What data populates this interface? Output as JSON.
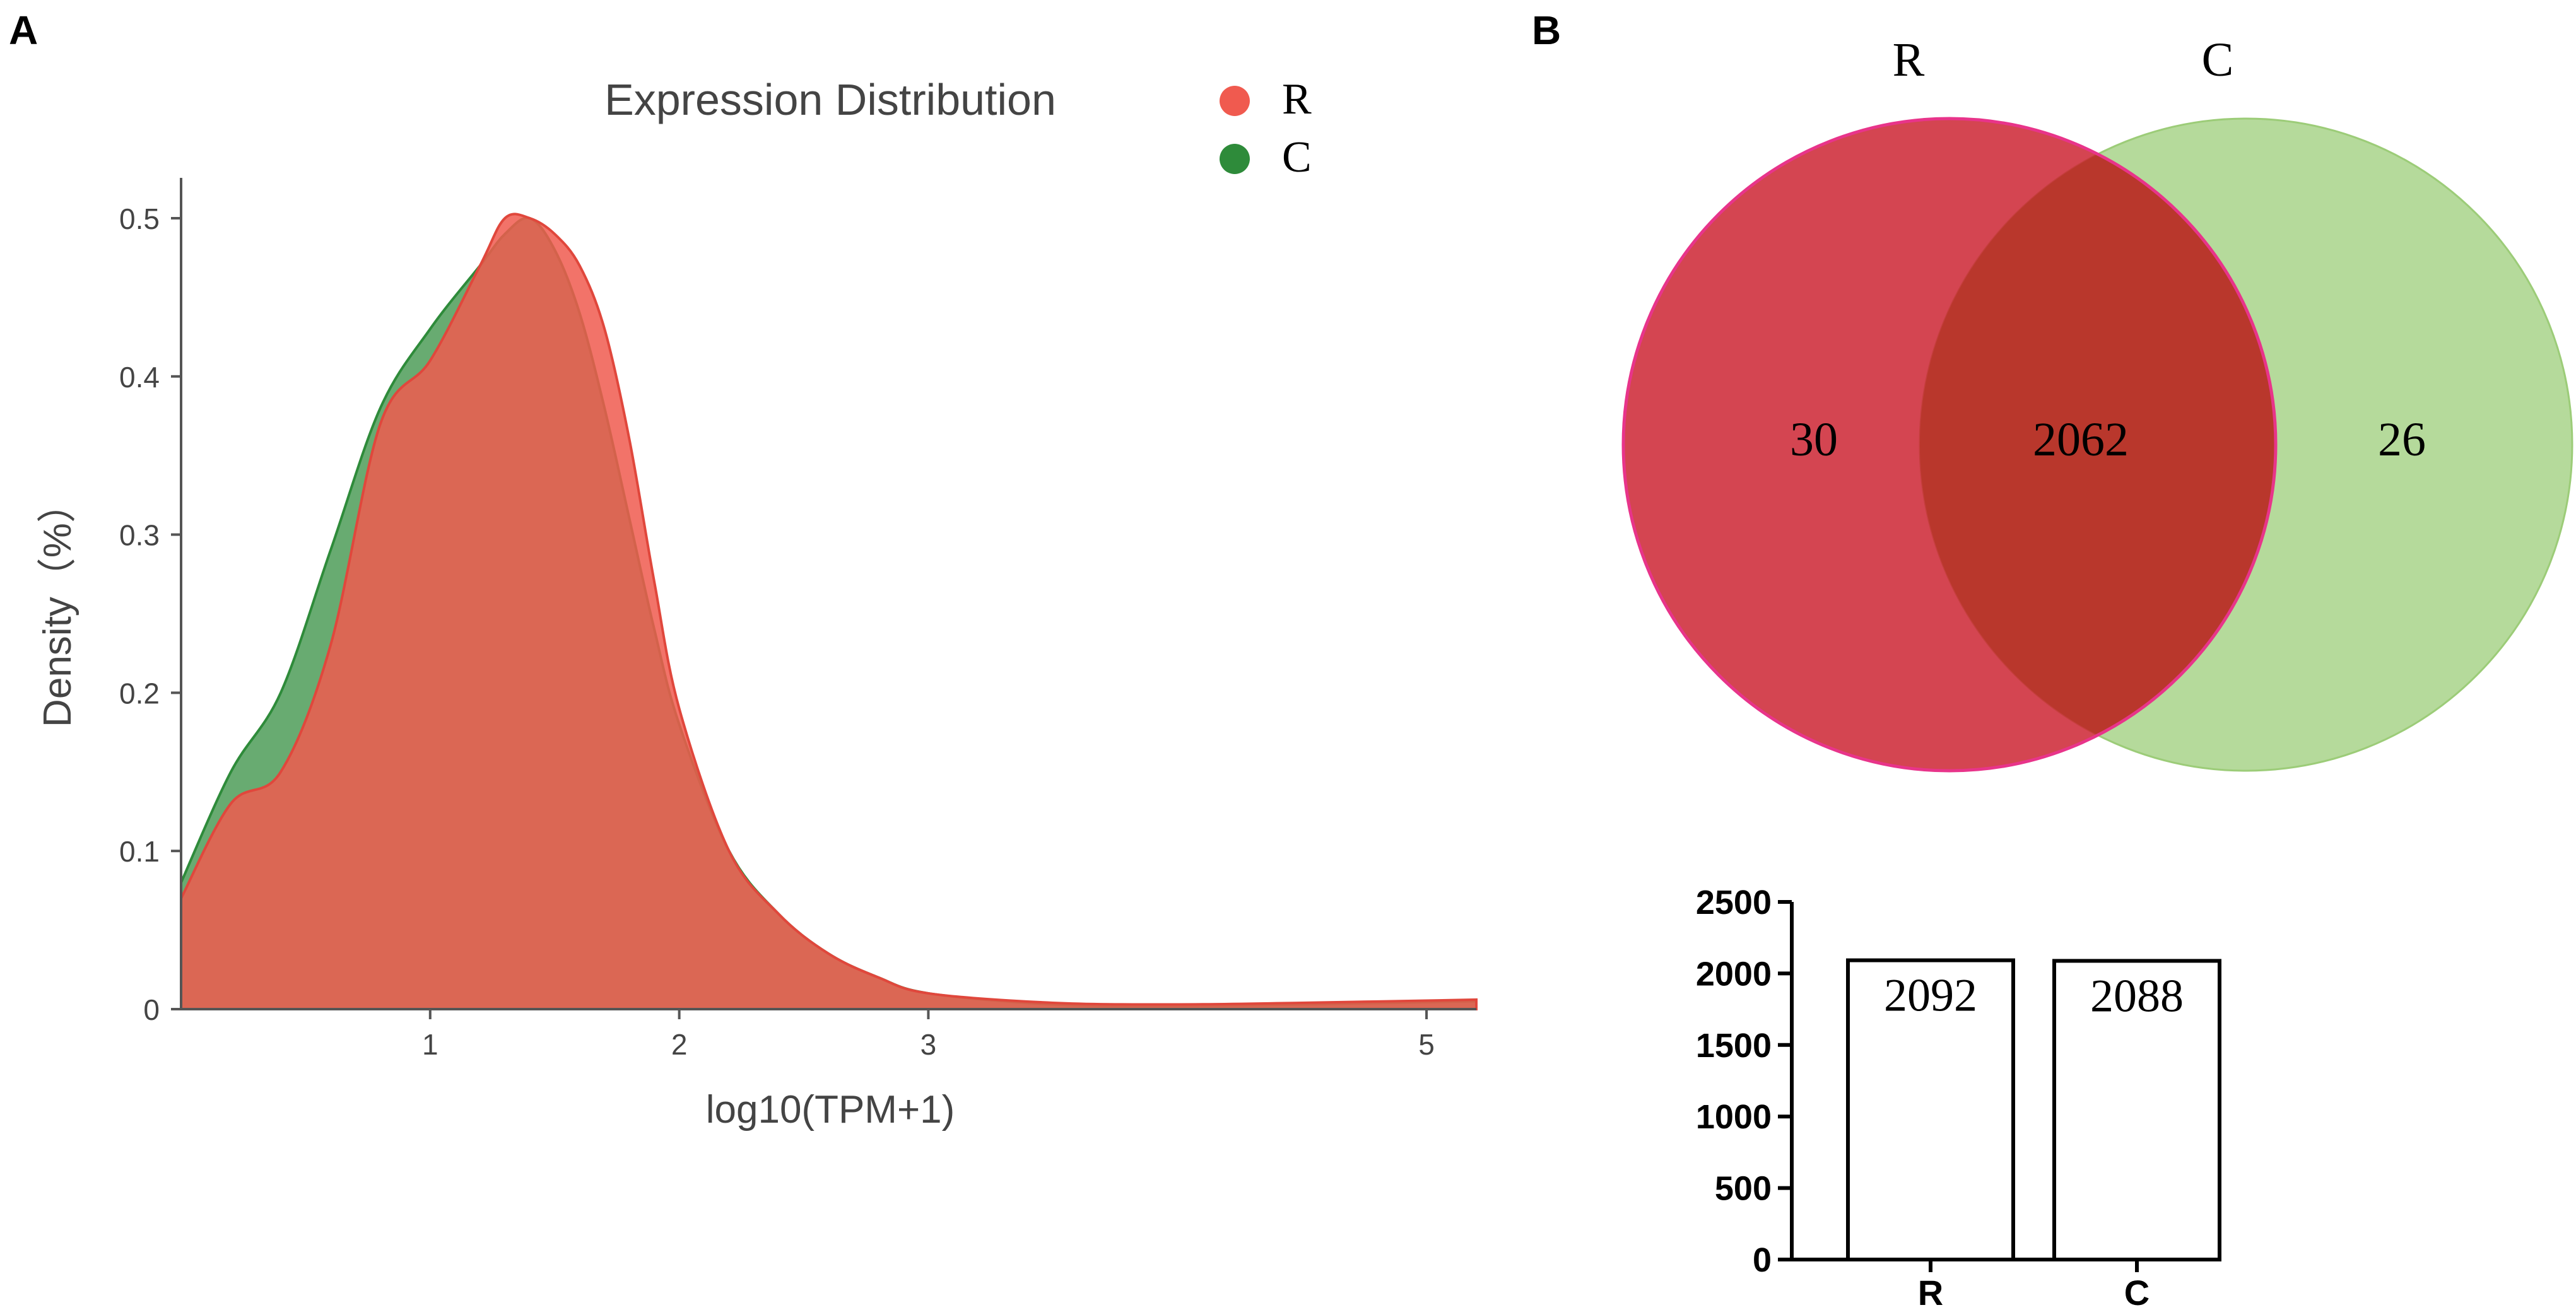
{
  "colors": {
    "R": "#f05a4f",
    "C": "#2e8b3a",
    "venn_R_fill": "#cc2533",
    "venn_R_stroke": "#e8348a",
    "venn_C_fill": "#a8d48a",
    "venn_overlap": "#b9372c"
  },
  "panelA": {
    "label": "A",
    "chart_data": {
      "type": "area",
      "title": "Expression Distribution",
      "xlabel": "log10(TPM+1)",
      "ylabel": "Density（%）",
      "xlim": [
        0,
        5.2
      ],
      "ylim": [
        0,
        0.5
      ],
      "x_ticks": [
        1,
        2,
        3,
        5
      ],
      "x_tick_labels": [
        "1",
        "2",
        "3",
        "5"
      ],
      "y_ticks": [
        0,
        0.1,
        0.2,
        0.3,
        0.4,
        0.5
      ],
      "y_tick_labels": [
        "0",
        "0.1",
        "0.2",
        "0.3",
        "0.4",
        "0.5"
      ],
      "legend": {
        "position": "top-right",
        "entries": [
          "R",
          "C"
        ]
      },
      "series": [
        {
          "name": "C",
          "x": [
            0,
            0.2,
            0.4,
            0.6,
            0.8,
            1.0,
            1.2,
            1.3,
            1.4,
            1.5,
            1.6,
            1.7,
            1.8,
            1.9,
            2.0,
            2.2,
            2.4,
            2.6,
            2.8,
            3.0,
            3.5,
            4.0,
            4.5,
            5.2
          ],
          "y": [
            0.08,
            0.15,
            0.2,
            0.29,
            0.38,
            0.43,
            0.47,
            0.49,
            0.5,
            0.48,
            0.44,
            0.38,
            0.31,
            0.24,
            0.18,
            0.1,
            0.06,
            0.035,
            0.02,
            0.01,
            0.003,
            0.002,
            0.003,
            0.005
          ]
        },
        {
          "name": "R",
          "x": [
            0,
            0.2,
            0.4,
            0.6,
            0.8,
            1.0,
            1.2,
            1.3,
            1.4,
            1.5,
            1.6,
            1.7,
            1.8,
            1.9,
            2.0,
            2.2,
            2.4,
            2.6,
            2.8,
            3.0,
            3.5,
            4.0,
            4.5,
            5.2
          ],
          "y": [
            0.07,
            0.13,
            0.15,
            0.23,
            0.37,
            0.41,
            0.47,
            0.5,
            0.5,
            0.49,
            0.47,
            0.43,
            0.36,
            0.27,
            0.19,
            0.1,
            0.06,
            0.035,
            0.02,
            0.01,
            0.004,
            0.003,
            0.004,
            0.006
          ]
        }
      ]
    }
  },
  "panelB": {
    "label": "B",
    "venn": {
      "set_labels": [
        "R",
        "C"
      ],
      "only_R": "30",
      "intersection": "2062",
      "only_C": "26"
    },
    "chart_data": {
      "type": "bar",
      "categories": [
        "R",
        "C"
      ],
      "values": [
        2092,
        2088
      ],
      "value_labels": [
        "2092",
        "2088"
      ],
      "ylim": [
        0,
        2500
      ],
      "y_ticks": [
        0,
        500,
        1000,
        1500,
        2000,
        2500
      ],
      "y_tick_labels": [
        "0",
        "500",
        "1000",
        "1500",
        "2000",
        "2500"
      ],
      "title": "",
      "xlabel": "",
      "ylabel": ""
    }
  }
}
